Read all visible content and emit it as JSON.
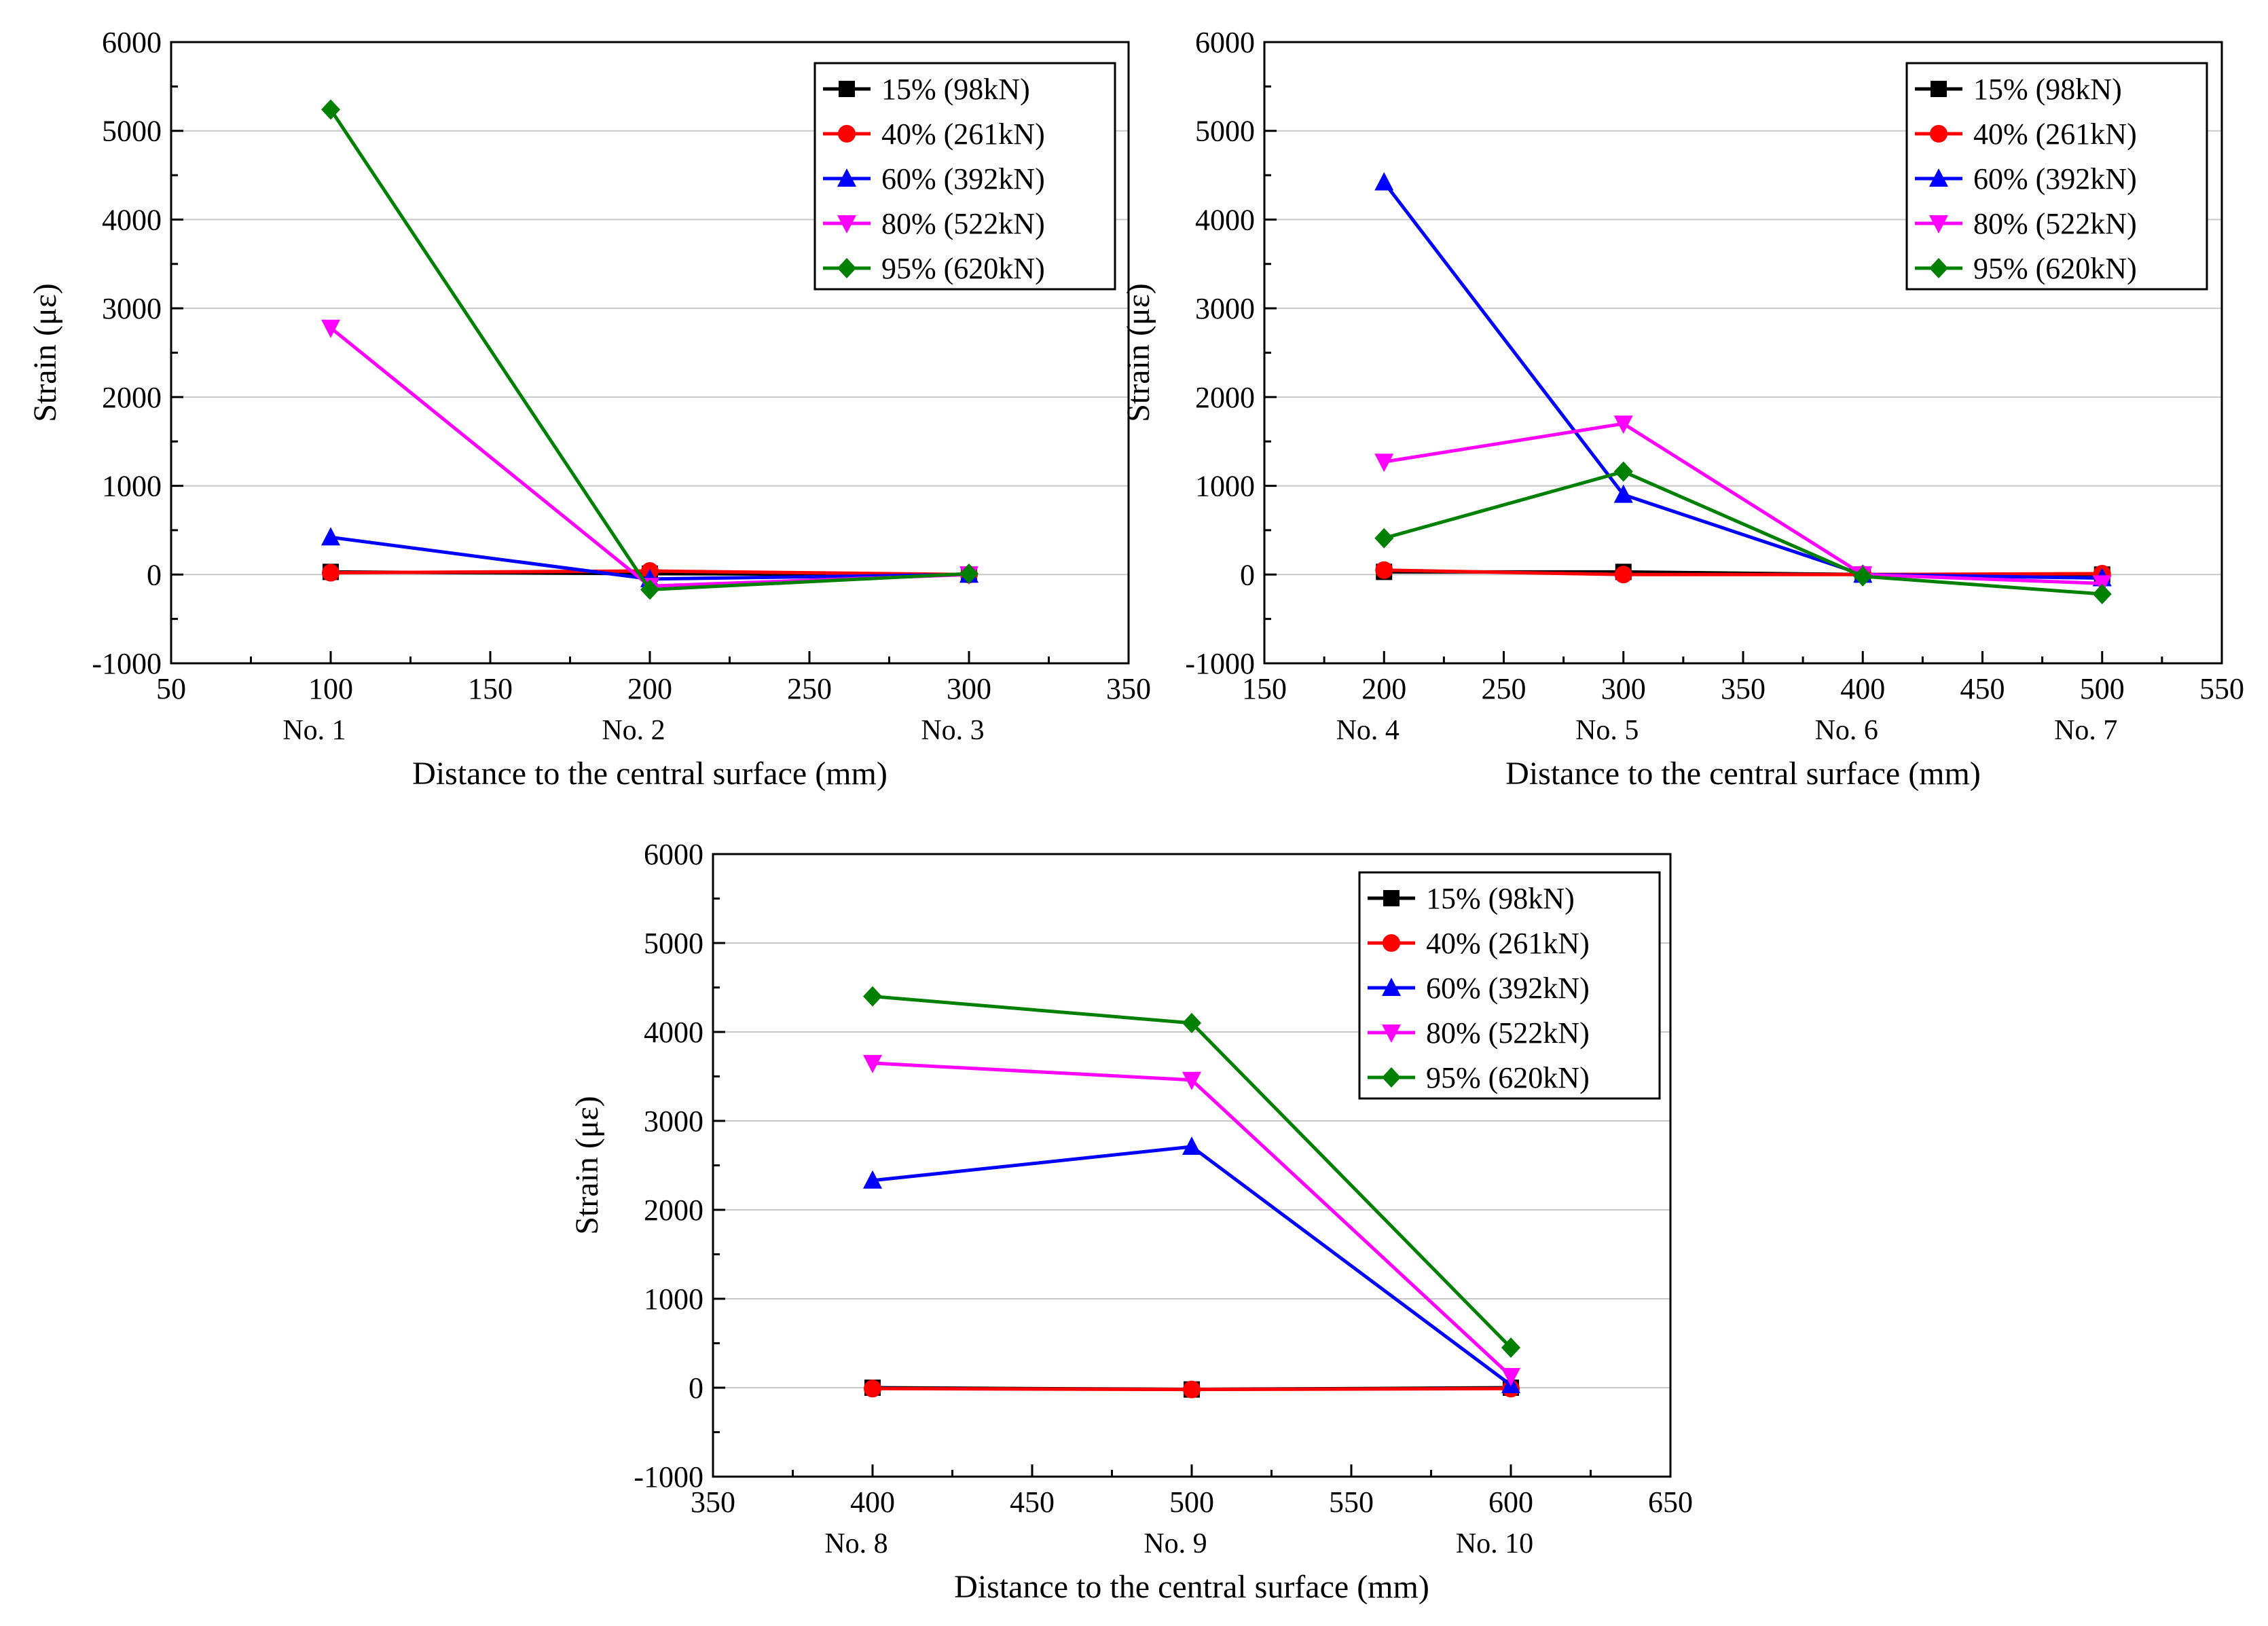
{
  "figure": {
    "legend_position": "top-right",
    "grid": "horizontal",
    "series_colors": [
      "#000000",
      "#ff0000",
      "#0000ff",
      "#ff00ff",
      "#008000"
    ],
    "series_markers": [
      "square",
      "circle",
      "triangle-up",
      "triangle-down",
      "diamond"
    ]
  },
  "chart_data": [
    {
      "type": "line",
      "xlabel": "Distance to the central surface (mm)",
      "ylabel": "Strain (με)",
      "xlim": [
        50,
        350
      ],
      "ylim": [
        -1000,
        6000
      ],
      "xticks": [
        50,
        100,
        150,
        200,
        250,
        300,
        350
      ],
      "yticks": [
        -1000,
        0,
        1000,
        2000,
        3000,
        4000,
        5000,
        6000
      ],
      "sensor_labels": [
        {
          "x": 100,
          "label": "No. 1"
        },
        {
          "x": 200,
          "label": "No. 2"
        },
        {
          "x": 300,
          "label": "No. 3"
        }
      ],
      "x": [
        100,
        200,
        300
      ],
      "series": [
        {
          "name": "15% (98kN)",
          "values": [
            30,
            10,
            0
          ]
        },
        {
          "name": "40% (261kN)",
          "values": [
            20,
            40,
            0
          ]
        },
        {
          "name": "60% (392kN)",
          "values": [
            420,
            -50,
            0
          ]
        },
        {
          "name": "80% (522kN)",
          "values": [
            2780,
            -130,
            0
          ]
        },
        {
          "name": "95% (620kN)",
          "values": [
            5240,
            -170,
            10
          ]
        }
      ]
    },
    {
      "type": "line",
      "xlabel": "Distance to the central surface (mm)",
      "ylabel": "Strain (με)",
      "xlim": [
        150,
        550
      ],
      "ylim": [
        -1000,
        6000
      ],
      "xticks": [
        150,
        200,
        250,
        300,
        350,
        400,
        450,
        500,
        550
      ],
      "yticks": [
        -1000,
        0,
        1000,
        2000,
        3000,
        4000,
        5000,
        6000
      ],
      "sensor_labels": [
        {
          "x": 200,
          "label": "No. 4"
        },
        {
          "x": 300,
          "label": "No. 5"
        },
        {
          "x": 400,
          "label": "No. 6"
        },
        {
          "x": 500,
          "label": "No. 7"
        }
      ],
      "x": [
        200,
        300,
        400,
        500
      ],
      "series": [
        {
          "name": "15% (98kN)",
          "values": [
            30,
            30,
            0,
            0
          ]
        },
        {
          "name": "40% (261kN)",
          "values": [
            50,
            0,
            0,
            10
          ]
        },
        {
          "name": "60% (392kN)",
          "values": [
            4420,
            900,
            0,
            -40
          ]
        },
        {
          "name": "80% (522kN)",
          "values": [
            1270,
            1700,
            0,
            -100
          ]
        },
        {
          "name": "95% (620kN)",
          "values": [
            410,
            1160,
            -20,
            -220
          ]
        }
      ]
    },
    {
      "type": "line",
      "xlabel": "Distance to the central surface (mm)",
      "ylabel": "Strain (με)",
      "xlim": [
        350,
        650
      ],
      "ylim": [
        -1000,
        6000
      ],
      "xticks": [
        350,
        400,
        450,
        500,
        550,
        600,
        650
      ],
      "yticks": [
        -1000,
        0,
        1000,
        2000,
        3000,
        4000,
        5000,
        6000
      ],
      "sensor_labels": [
        {
          "x": 400,
          "label": "No. 8"
        },
        {
          "x": 500,
          "label": "No. 9"
        },
        {
          "x": 600,
          "label": "No. 10"
        }
      ],
      "x": [
        400,
        500,
        600
      ],
      "series": [
        {
          "name": "15% (98kN)",
          "values": [
            0,
            -20,
            0
          ]
        },
        {
          "name": "40% (261kN)",
          "values": [
            -10,
            -20,
            -10
          ]
        },
        {
          "name": "60% (392kN)",
          "values": [
            2330,
            2710,
            30
          ]
        },
        {
          "name": "80% (522kN)",
          "values": [
            3650,
            3460,
            130
          ]
        },
        {
          "name": "95% (620kN)",
          "values": [
            4400,
            4100,
            450
          ]
        }
      ]
    }
  ]
}
